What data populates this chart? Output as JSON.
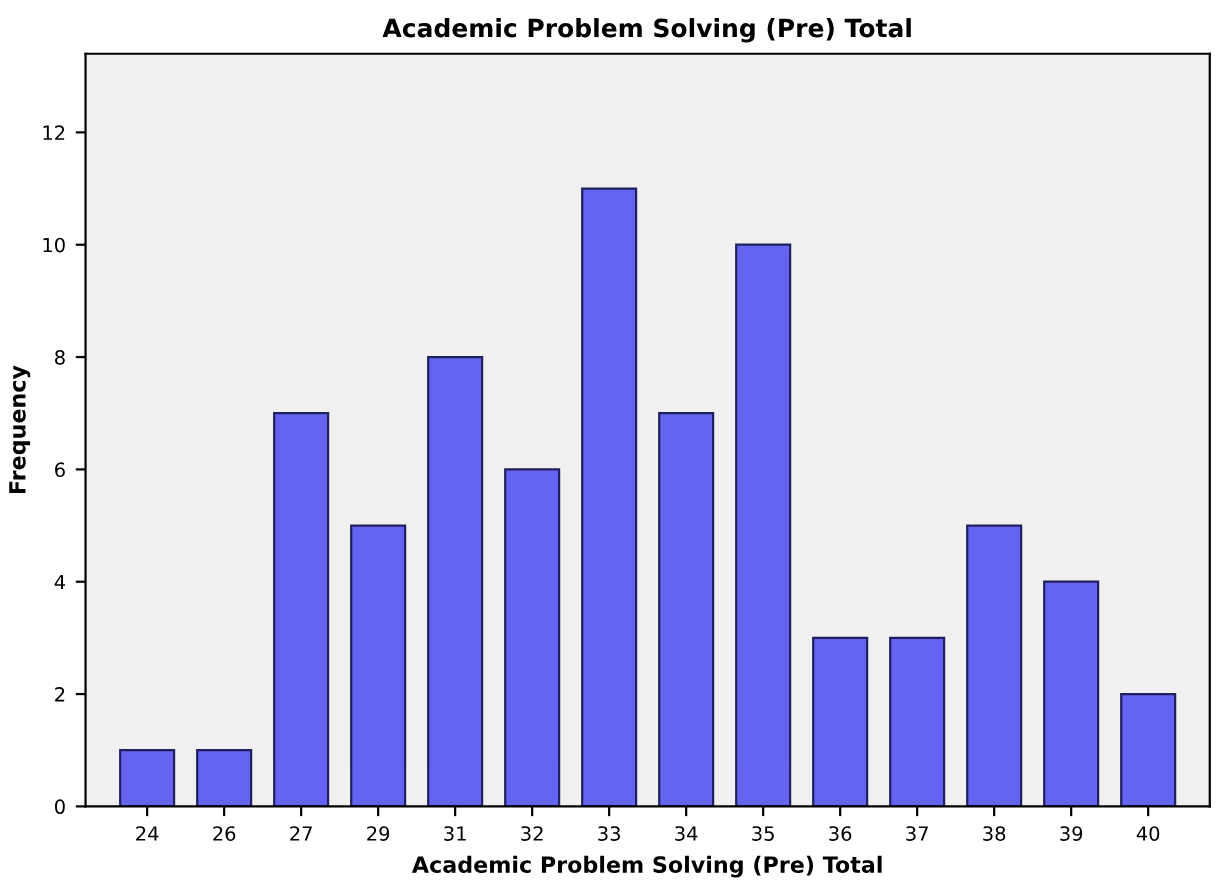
{
  "chart_data": {
    "type": "bar",
    "title": "Academic Problem Solving (Pre) Total",
    "xlabel": "Academic Problem Solving (Pre) Total",
    "ylabel": "Frequency",
    "categories": [
      "24",
      "26",
      "27",
      "29",
      "31",
      "32",
      "33",
      "34",
      "35",
      "36",
      "37",
      "38",
      "39",
      "40"
    ],
    "values": [
      1,
      1,
      7,
      5,
      8,
      6,
      11,
      7,
      10,
      3,
      3,
      5,
      4,
      2
    ],
    "color": "#6464f0",
    "ylim": [
      0,
      13.4
    ],
    "yticks": [
      0,
      2,
      4,
      6,
      8,
      10,
      12
    ],
    "grid": false
  }
}
